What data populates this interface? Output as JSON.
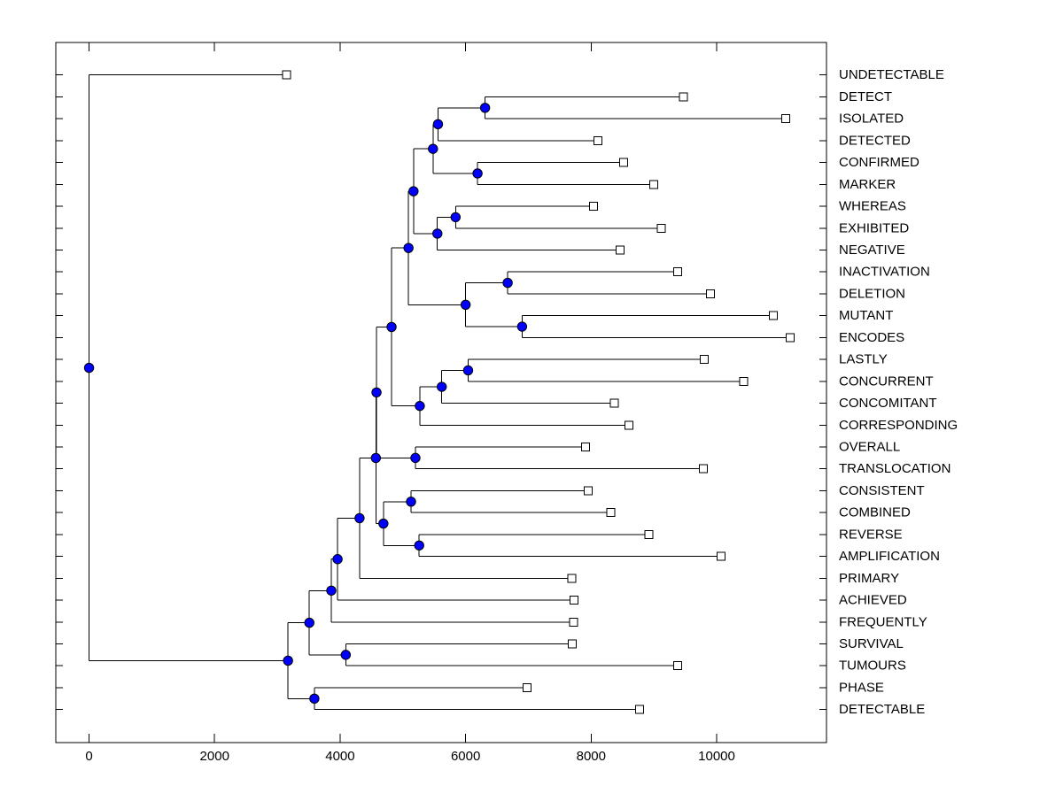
{
  "figure": {
    "title": "",
    "background": "#ffffff"
  },
  "chart_data": {
    "type": "dendrogram",
    "orientation": "root-left-leaves-labeled-right",
    "title": "",
    "xlabel": "",
    "ylabel": "",
    "grid": false,
    "x_axis": {
      "ticks": [
        0,
        2000,
        4000,
        6000,
        8000,
        10000
      ],
      "tick_labels": [
        "0",
        "2000",
        "4000",
        "6000",
        "8000",
        "10000"
      ],
      "xlim": [
        -530,
        11750
      ]
    },
    "leaves": [
      {
        "label": "UNDETECTABLE",
        "value": 3150
      },
      {
        "label": "DETECT",
        "value": 9470
      },
      {
        "label": "ISOLATED",
        "value": 11100
      },
      {
        "label": "DETECTED",
        "value": 8110
      },
      {
        "label": "CONFIRMED",
        "value": 8520
      },
      {
        "label": "MARKER",
        "value": 9000
      },
      {
        "label": "WHEREAS",
        "value": 8040
      },
      {
        "label": "EXHIBITED",
        "value": 9120
      },
      {
        "label": "NEGATIVE",
        "value": 8460
      },
      {
        "label": "INACTIVATION",
        "value": 9380
      },
      {
        "label": "DELETION",
        "value": 9900
      },
      {
        "label": "MUTANT",
        "value": 10900
      },
      {
        "label": "ENCODES",
        "value": 11170
      },
      {
        "label": "LASTLY",
        "value": 9800
      },
      {
        "label": "CONCURRENT",
        "value": 10430
      },
      {
        "label": "CONCOMITANT",
        "value": 8370
      },
      {
        "label": "CORRESPONDING",
        "value": 8600
      },
      {
        "label": "OVERALL",
        "value": 7910
      },
      {
        "label": "TRANSLOCATION",
        "value": 9790
      },
      {
        "label": "CONSISTENT",
        "value": 7950
      },
      {
        "label": "COMBINED",
        "value": 8310
      },
      {
        "label": "REVERSE",
        "value": 8920
      },
      {
        "label": "AMPLIFICATION",
        "value": 10070
      },
      {
        "label": "PRIMARY",
        "value": 7690
      },
      {
        "label": "ACHIEVED",
        "value": 7730
      },
      {
        "label": "FREQUENTLY",
        "value": 7720
      },
      {
        "label": "SURVIVAL",
        "value": 7700
      },
      {
        "label": "TUMOURS",
        "value": 9380
      },
      {
        "label": "PHASE",
        "value": 6980
      },
      {
        "label": "DETECTABLE",
        "value": 8770
      }
    ],
    "merges": [
      {
        "children": [
          "L1",
          "L2"
        ],
        "value": 6310
      },
      {
        "children": [
          "M0",
          "L3"
        ],
        "value": 5560
      },
      {
        "children": [
          "L4",
          "L5"
        ],
        "value": 6190
      },
      {
        "children": [
          "M1",
          "M2"
        ],
        "value": 5480
      },
      {
        "children": [
          "L6",
          "L7"
        ],
        "value": 5840
      },
      {
        "children": [
          "M4",
          "L8"
        ],
        "value": 5550
      },
      {
        "children": [
          "M3",
          "M5"
        ],
        "value": 5170
      },
      {
        "children": [
          "L9",
          "L10"
        ],
        "value": 6670
      },
      {
        "children": [
          "L11",
          "L12"
        ],
        "value": 6900
      },
      {
        "children": [
          "M7",
          "M8"
        ],
        "value": 6000
      },
      {
        "children": [
          "M6",
          "M9"
        ],
        "value": 5090
      },
      {
        "children": [
          "L13",
          "L14"
        ],
        "value": 6040
      },
      {
        "children": [
          "M11",
          "L15"
        ],
        "value": 5620
      },
      {
        "children": [
          "M12",
          "L16"
        ],
        "value": 5270
      },
      {
        "children": [
          "M10",
          "M13"
        ],
        "value": 4820
      },
      {
        "children": [
          "L17",
          "L18"
        ],
        "value": 5200
      },
      {
        "children": [
          "M14",
          "M15"
        ],
        "value": 4580
      },
      {
        "children": [
          "L19",
          "L20"
        ],
        "value": 5130
      },
      {
        "children": [
          "L21",
          "L22"
        ],
        "value": 5260
      },
      {
        "children": [
          "M17",
          "M18"
        ],
        "value": 4690
      },
      {
        "children": [
          "M16",
          "M19"
        ],
        "value": 4570
      },
      {
        "children": [
          "M20",
          "L23"
        ],
        "value": 4310
      },
      {
        "children": [
          "M21",
          "L24"
        ],
        "value": 3960
      },
      {
        "children": [
          "M22",
          "L25"
        ],
        "value": 3860
      },
      {
        "children": [
          "L26",
          "L27"
        ],
        "value": 4090
      },
      {
        "children": [
          "M23",
          "M24"
        ],
        "value": 3510
      },
      {
        "children": [
          "L28",
          "L29"
        ],
        "value": 3590
      },
      {
        "children": [
          "M25",
          "M26"
        ],
        "value": 3170
      },
      {
        "children": [
          "L0",
          "M27"
        ],
        "value": 0
      }
    ],
    "style": {
      "line_color": "#000000",
      "merge_node_fill": "#0000ff",
      "merge_node_edge": "#000000",
      "leaf_marker_fill": "#ffffff",
      "leaf_marker_edge": "#000000",
      "axis_color": "#000000",
      "text_color": "#000000",
      "background": "#ffffff"
    }
  }
}
